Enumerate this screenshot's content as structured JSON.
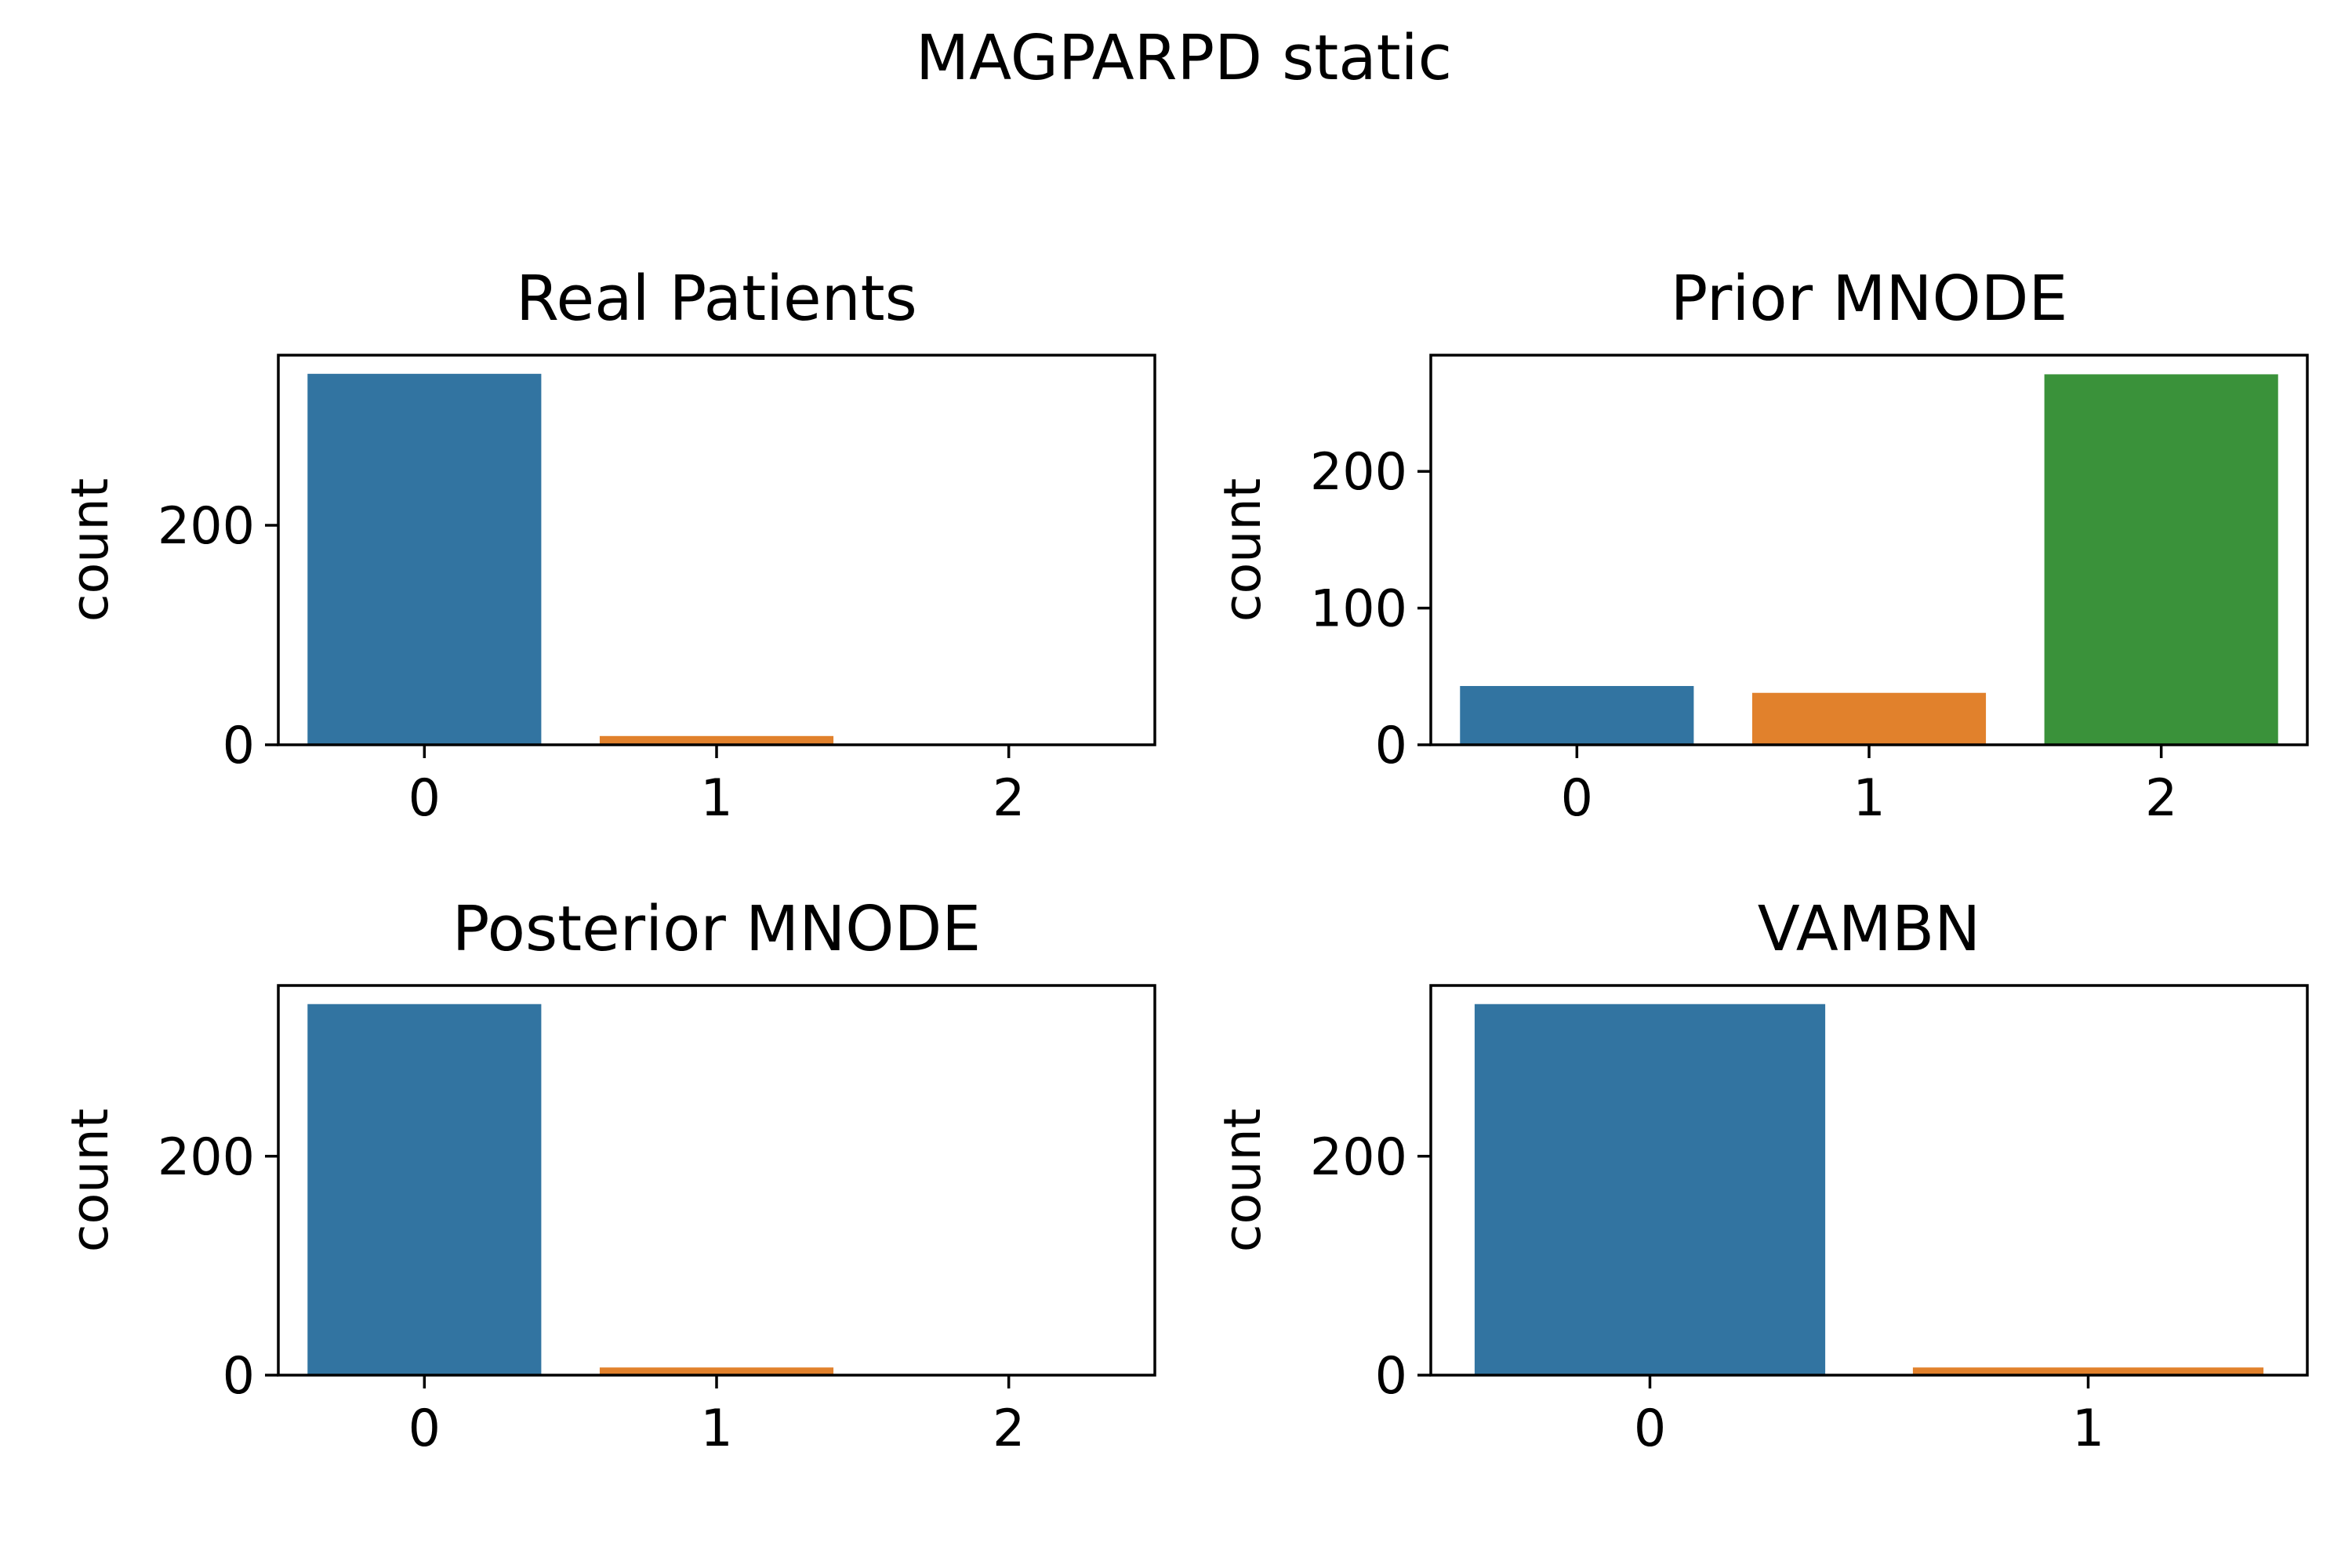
{
  "figure": {
    "title": "MAGPARPD static"
  },
  "chart_data": [
    {
      "type": "bar",
      "title": "Real Patients",
      "xlabel": "",
      "ylabel": "count",
      "categories": [
        "0",
        "1",
        "2"
      ],
      "values": [
        338,
        8,
        0
      ],
      "bar_colors": [
        "#3274a1",
        "#e1812c",
        "#3a923a"
      ],
      "ylim": [
        0,
        355
      ],
      "yticks": [
        0,
        200
      ],
      "grid": false
    },
    {
      "type": "bar",
      "title": "Prior MNODE",
      "xlabel": "",
      "ylabel": "count",
      "categories": [
        "0",
        "1",
        "2"
      ],
      "values": [
        43,
        38,
        271
      ],
      "bar_colors": [
        "#3274a1",
        "#e1812c",
        "#3a923a"
      ],
      "ylim": [
        0,
        285
      ],
      "yticks": [
        0,
        100,
        200
      ],
      "grid": false
    },
    {
      "type": "bar",
      "title": "Posterior MNODE",
      "xlabel": "",
      "ylabel": "count",
      "categories": [
        "0",
        "1",
        "2"
      ],
      "values": [
        339,
        7,
        0
      ],
      "bar_colors": [
        "#3274a1",
        "#e1812c",
        "#3a923a"
      ],
      "ylim": [
        0,
        356
      ],
      "yticks": [
        0,
        200
      ],
      "grid": false
    },
    {
      "type": "bar",
      "title": "VAMBN",
      "xlabel": "",
      "ylabel": "count",
      "categories": [
        "0",
        "1"
      ],
      "values": [
        339,
        7
      ],
      "bar_colors": [
        "#3274a1",
        "#e1812c"
      ],
      "ylim": [
        0,
        356
      ],
      "yticks": [
        0,
        200
      ],
      "grid": false
    }
  ]
}
